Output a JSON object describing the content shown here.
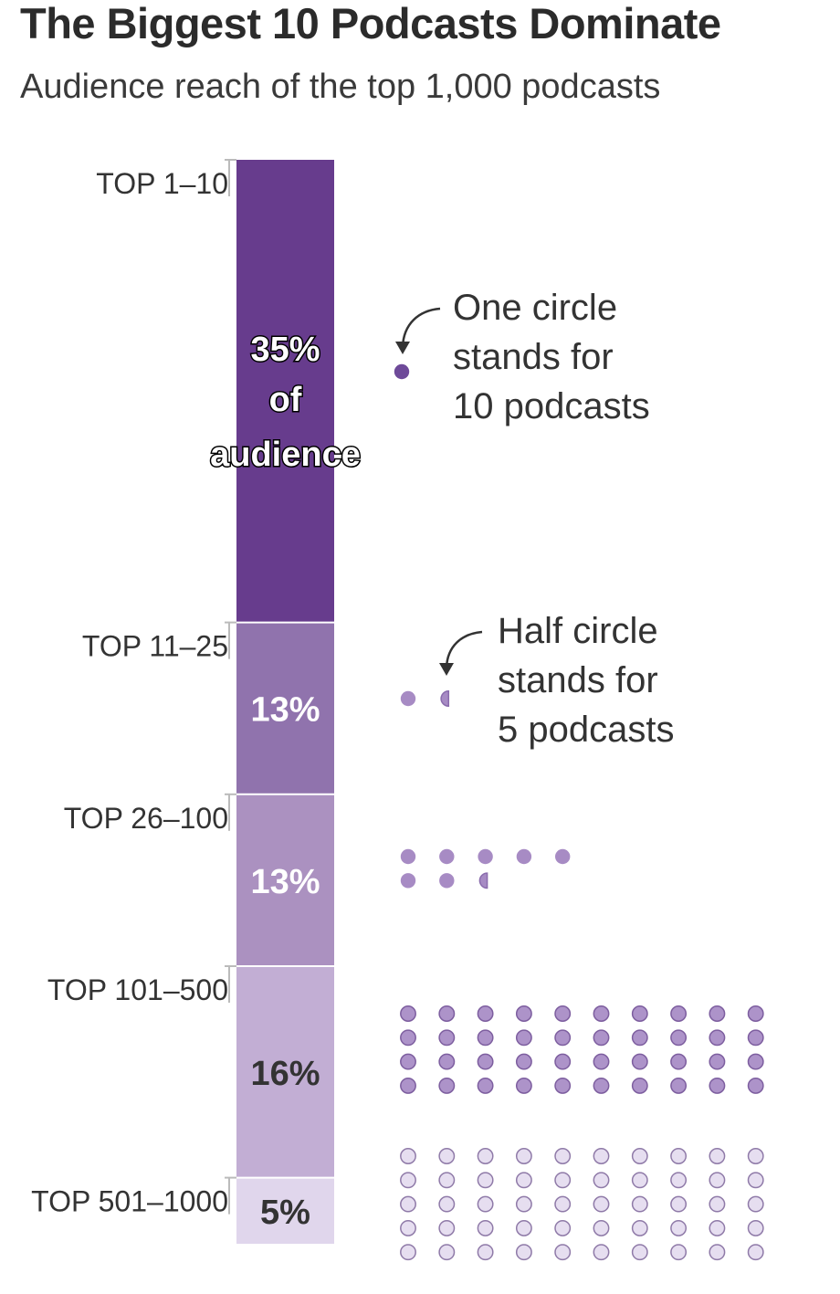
{
  "title": "The Biggest 10 Podcasts Dominate",
  "subtitle": "Audience reach of the top 1,000 podcasts",
  "chart_data": {
    "type": "bar",
    "orientation": "stacked-vertical",
    "categories": [
      "TOP 1–10",
      "TOP 11–25",
      "TOP 26–100",
      "TOP 101–500",
      "TOP 501–1000"
    ],
    "values": [
      35,
      13,
      13,
      16,
      5
    ],
    "value_labels": [
      "35% of audience",
      "13%",
      "13%",
      "16%",
      "5%"
    ],
    "podcast_counts": [
      10,
      15,
      75,
      400,
      500
    ],
    "circles": [
      1,
      1.5,
      7.5,
      40,
      50
    ],
    "units": "percent of audience",
    "colors": [
      "#673c8d",
      "#9073ad",
      "#ab91c0",
      "#c2aed4",
      "#e0d6ec"
    ],
    "dot_colors": [
      "#6e4a99",
      "#a78bc4",
      "#a78bc4",
      "#ad93c9",
      "#e6def0"
    ],
    "annotations": [
      {
        "text": "One circle stands for 10 podcasts"
      },
      {
        "text": "Half circle stands for 5 podcasts"
      }
    ]
  }
}
